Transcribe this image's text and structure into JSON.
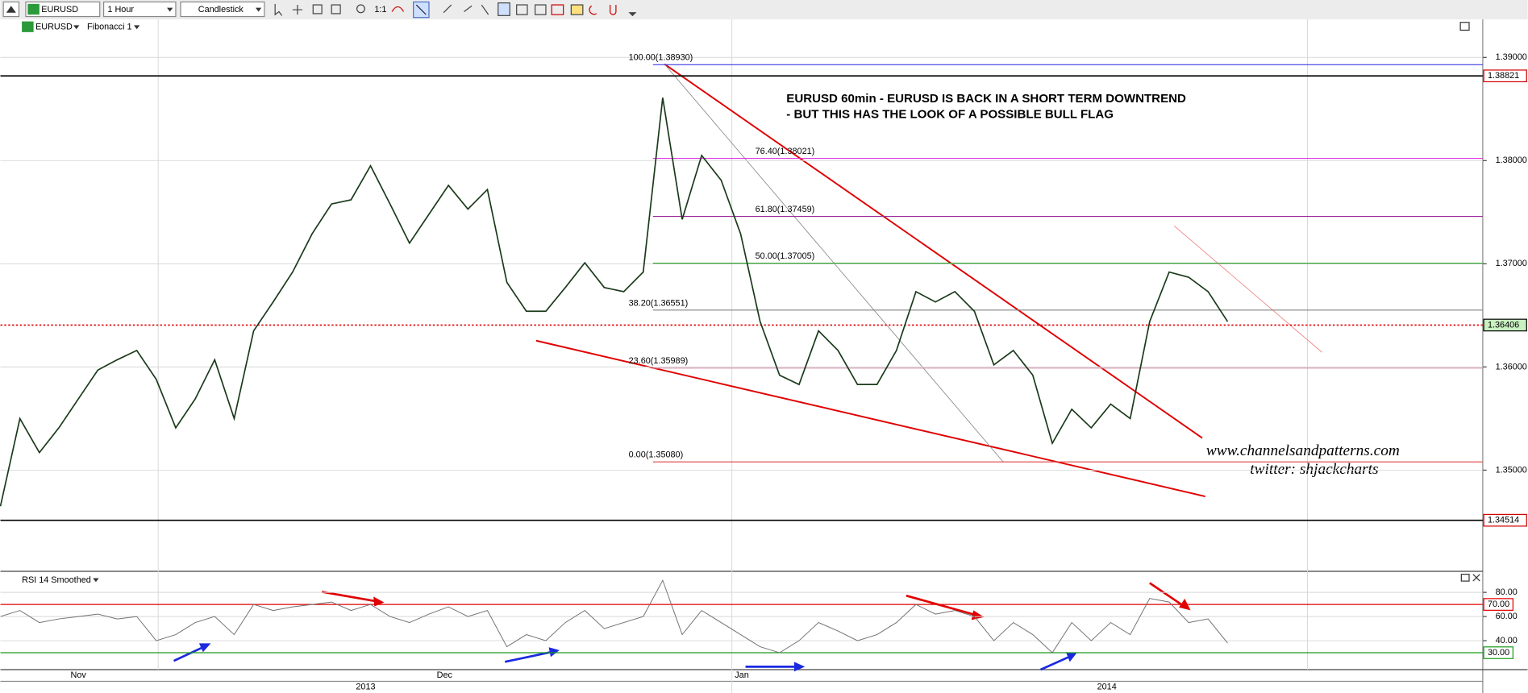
{
  "toolbar": {
    "symbol": "EURUSD",
    "timeframe": "1 Hour",
    "chart_style": "Candlestick",
    "zoom": "1:1"
  },
  "legend": {
    "symbol": "EURUSD",
    "tool": "Fibonacci 1"
  },
  "chart_data": [
    {
      "type": "line",
      "name": "EURUSD",
      "color": "#1a3a1a",
      "values": [
        1.3465,
        1.355,
        1.3517,
        1.3541,
        1.3569,
        1.3597,
        1.3607,
        1.3616,
        1.3588,
        1.3541,
        1.3569,
        1.3607,
        1.355,
        1.3635,
        1.3663,
        1.3692,
        1.3729,
        1.3758,
        1.3762,
        1.3795,
        1.3758,
        1.372,
        1.3748,
        1.3776,
        1.3753,
        1.3772,
        1.3682,
        1.3654,
        1.3654,
        1.3677,
        1.3701,
        1.3677,
        1.3673,
        1.3692,
        1.3861,
        1.3743,
        1.3805,
        1.3781,
        1.3729,
        1.3644,
        1.3592,
        1.3583,
        1.3635,
        1.3616,
        1.3583,
        1.3583,
        1.3616,
        1.3673,
        1.3663,
        1.3673,
        1.3654,
        1.3602,
        1.3616,
        1.3592,
        1.3526,
        1.3559,
        1.3541,
        1.3564,
        1.355,
        1.3644,
        1.3692,
        1.3687,
        1.3673,
        1.3644
      ],
      "ylim": [
        1.34038,
        1.39368
      ],
      "yticks": [
        {
          "value": 1.39,
          "label": "1.39000"
        },
        {
          "value": 1.38,
          "label": "1.38000"
        },
        {
          "value": 1.37,
          "label": "1.37000"
        },
        {
          "value": 1.36,
          "label": "1.36000"
        },
        {
          "value": 1.35,
          "label": "1.35000"
        }
      ],
      "grid": true,
      "price_markers": [
        {
          "value": 1.38821,
          "label": "1.38821",
          "line_color": "#000000",
          "label_color": "#d00000",
          "line_style": "solid"
        },
        {
          "value": 1.36406,
          "label": "1.36406",
          "line_color": "#e00000",
          "label_color": "#000000",
          "box_color": "#c8f0c0",
          "line_style": "dotted"
        },
        {
          "value": 1.34514,
          "label": "1.34514",
          "line_color": "#000000",
          "label_color": "#d00000",
          "line_style": "solid"
        }
      ],
      "fib_levels": [
        {
          "value": 1.3893,
          "label": "100.00(1.38930)",
          "color": "#2020e0"
        },
        {
          "value": 1.38021,
          "label": "76.40(1.38021)",
          "color": "#e020e0"
        },
        {
          "value": 1.37459,
          "label": "61.80(1.37459)",
          "color": "#9a2a9a"
        },
        {
          "value": 1.37005,
          "label": "50.00(1.37005)",
          "color": "#1a9a1a"
        },
        {
          "value": 1.36551,
          "label": "38.20(1.36551)",
          "color": "#808080"
        },
        {
          "value": 1.35989,
          "label": "23.60(1.35989)",
          "color": "#d090b0"
        },
        {
          "value": 1.3508,
          "label": "0.00(1.35080)",
          "color": "#e04040"
        }
      ],
      "annotations": [
        "EURUSD 60min - EURUSD IS BACK IN A SHORT TERM DOWNTREND",
        "- BUT THIS HAS THE LOOK OF A POSSIBLE BULL FLAG",
        "www.channelsandpatterns.com",
        "twitter: shjackcharts"
      ],
      "x_labels": [
        "Nov",
        "Dec",
        "Jan"
      ],
      "year_labels": [
        "2013",
        "2014"
      ]
    },
    {
      "type": "line",
      "name": "RSI 14 Smoothed",
      "color": "#707070",
      "values": [
        60,
        65,
        55,
        58,
        60,
        62,
        58,
        60,
        40,
        45,
        55,
        60,
        45,
        70,
        65,
        68,
        70,
        72,
        65,
        70,
        60,
        55,
        62,
        68,
        60,
        65,
        35,
        45,
        40,
        55,
        65,
        50,
        55,
        60,
        90,
        45,
        65,
        55,
        45,
        35,
        30,
        40,
        55,
        48,
        40,
        45,
        55,
        70,
        62,
        65,
        60,
        40,
        55,
        45,
        30,
        55,
        40,
        55,
        45,
        75,
        72,
        55,
        58,
        38
      ],
      "ylim": [
        16,
        95
      ],
      "yticks": [
        {
          "value": 80,
          "label": "80.00"
        },
        {
          "value": 60,
          "label": "60.00"
        },
        {
          "value": 40,
          "label": "40.00"
        }
      ],
      "levels": [
        {
          "value": 70,
          "label": "70.00",
          "color": "#e00000"
        },
        {
          "value": 30,
          "label": "30.00",
          "color": "#1a9a1a"
        }
      ]
    }
  ]
}
